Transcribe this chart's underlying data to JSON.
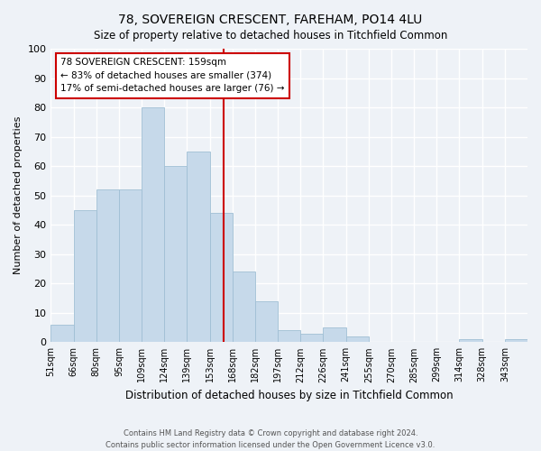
{
  "title": "78, SOVEREIGN CRESCENT, FAREHAM, PO14 4LU",
  "subtitle": "Size of property relative to detached houses in Titchfield Common",
  "xlabel": "Distribution of detached houses by size in Titchfield Common",
  "ylabel": "Number of detached properties",
  "bin_labels": [
    "51sqm",
    "66sqm",
    "80sqm",
    "95sqm",
    "109sqm",
    "124sqm",
    "139sqm",
    "153sqm",
    "168sqm",
    "182sqm",
    "197sqm",
    "212sqm",
    "226sqm",
    "241sqm",
    "255sqm",
    "270sqm",
    "285sqm",
    "299sqm",
    "314sqm",
    "328sqm",
    "343sqm"
  ],
  "bar_heights": [
    6,
    45,
    52,
    52,
    80,
    60,
    65,
    44,
    24,
    14,
    4,
    3,
    5,
    2,
    0,
    0,
    0,
    0,
    1,
    0,
    1
  ],
  "bar_color": "#c6d9ea",
  "bar_edgecolor": "#a0bfd4",
  "vline_color": "#cc0000",
  "ylim": [
    0,
    100
  ],
  "yticks": [
    0,
    10,
    20,
    30,
    40,
    50,
    60,
    70,
    80,
    90,
    100
  ],
  "annotation_title": "78 SOVEREIGN CRESCENT: 159sqm",
  "annotation_line1": "← 83% of detached houses are smaller (374)",
  "annotation_line2": "17% of semi-detached houses are larger (76) →",
  "annotation_box_color": "#cc0000",
  "footer_line1": "Contains HM Land Registry data © Crown copyright and database right 2024.",
  "footer_line2": "Contains public sector information licensed under the Open Government Licence v3.0.",
  "background_color": "#eef2f7",
  "grid_color": "#ffffff"
}
